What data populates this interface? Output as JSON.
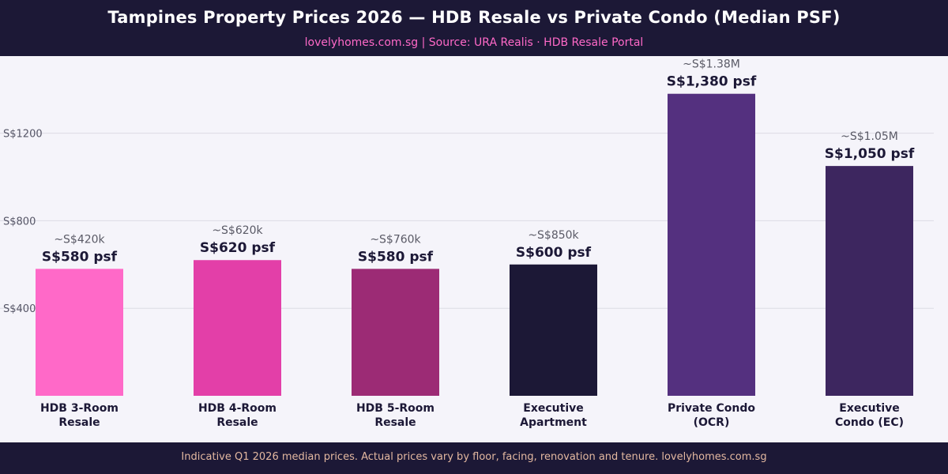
{
  "header": {
    "title": "Tampines Property Prices 2026 — HDB Resale vs Private Condo (Median PSF)",
    "subtitle": "lovelyhomes.com.sg  |  Source: URA Realis · HDB Resale Portal"
  },
  "footer": {
    "note": "Indicative Q1 2026 median prices. Actual prices vary by floor, facing, renovation and tenure. lovelyhomes.com.sg"
  },
  "chart_data": {
    "type": "bar",
    "categories": [
      [
        "HDB 3-Room",
        "Resale"
      ],
      [
        "HDB 4-Room",
        "Resale"
      ],
      [
        "HDB 5-Room",
        "Resale"
      ],
      [
        "Executive",
        "Apartment"
      ],
      [
        "Private Condo",
        "(OCR)"
      ],
      [
        "Executive",
        "Condo (EC)"
      ]
    ],
    "values": [
      580,
      620,
      580,
      600,
      1380,
      1050
    ],
    "value_labels": [
      "S$580 psf",
      "S$620 psf",
      "S$580 psf",
      "S$600 psf",
      "S$1,380 psf",
      "S$1,050 psf"
    ],
    "price_labels": [
      "~S$420k",
      "~S$620k",
      "~S$760k",
      "~S$850k",
      "~S$1.38M",
      "~S$1.05M"
    ],
    "colors": [
      "#ff69c8",
      "#e33fa8",
      "#9c2b75",
      "#1c1836",
      "#54307f",
      "#3d265f"
    ],
    "yticks": [
      400,
      800,
      1200
    ],
    "ytick_labels": [
      "S$400",
      "S$800",
      "S$1200"
    ],
    "ylim": [
      0,
      1480
    ],
    "grid": true
  }
}
